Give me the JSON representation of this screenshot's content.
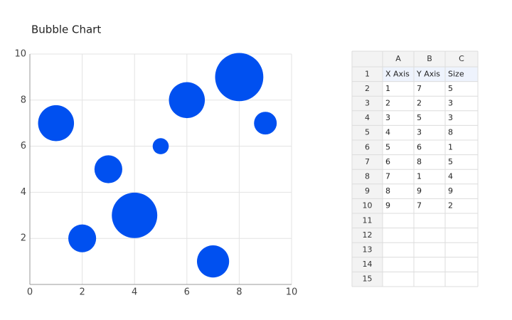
{
  "chart_data": {
    "type": "bubble",
    "title": "Bubble Chart",
    "x": [
      1,
      2,
      3,
      4,
      5,
      6,
      7,
      8,
      9
    ],
    "values": [
      7,
      2,
      5,
      3,
      6,
      8,
      1,
      9,
      7
    ],
    "sizes": [
      5,
      3,
      3,
      8,
      1,
      5,
      4,
      9,
      2
    ],
    "color": "#0050f0",
    "xlim": [
      0,
      10
    ],
    "xticks": [
      0,
      2,
      4,
      6,
      8,
      10
    ],
    "ylim": [
      0,
      10
    ],
    "yticks": [
      2,
      4,
      6,
      8,
      10
    ],
    "grid": true
  },
  "sheet": {
    "columns": [
      "A",
      "B",
      "C"
    ],
    "row_numbers": [
      1,
      2,
      3,
      4,
      5,
      6,
      7,
      8,
      9,
      10,
      11,
      12,
      13,
      14,
      15
    ],
    "header": [
      "X Axis",
      "Y Axis",
      "Size"
    ]
  }
}
